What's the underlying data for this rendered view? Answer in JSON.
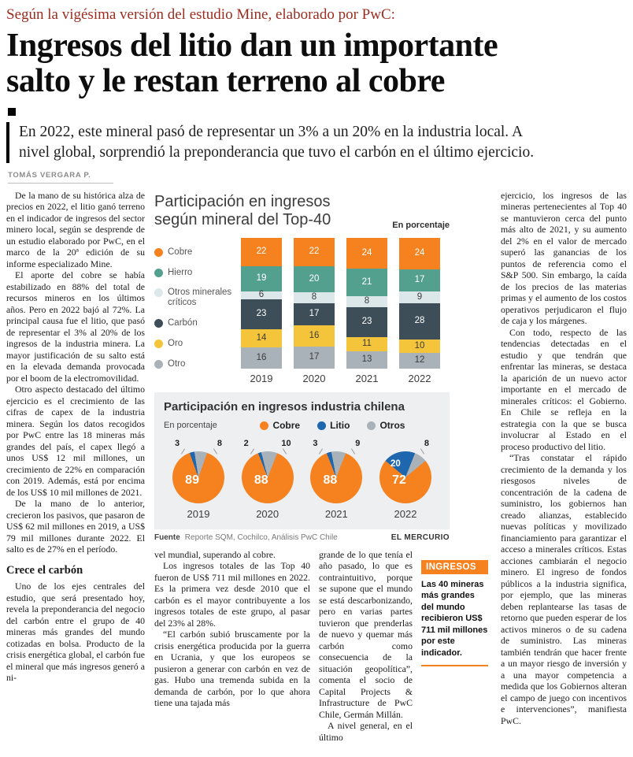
{
  "header": {
    "kicker": "Según la vigésima versión del estudio Mine, elaborado por PwC:",
    "headline_lines": [
      "Ingresos del litio dan un importante",
      "salto y le restan terreno al cobre"
    ],
    "subhead_lines": [
      "En 2022, este mineral pasó de representar un 3% a un 20% en la industria local. A",
      "nivel global, sorprendió la preponderancia que tuvo el carbón en el último ejercicio."
    ],
    "byline": "TOMÁS VERGARA P."
  },
  "columns": {
    "left": {
      "paragraphs": [
        "De la mano de su histórica alza de precios en 2022, el litio ganó terreno en el indicador de ingresos del sector minero local, según se desprende de un estudio elaborado por PwC, en el marco de la 20ª edición de su informe especializado Mine.",
        "El aporte del cobre se había estabilizado en 88% del total de recursos mineros en los últimos años. Pero en 2022 bajó al 72%. La principal causa fue el litio, que pasó de representar el 3% al 20% de los ingresos de la industria minera. La mayor justificación de su salto está en la elevada demanda provocada por el boom de la electromovilidad.",
        "Otro aspecto destacado del último ejercicio es el crecimiento de las cifras de capex de la industria minera. Según los datos recogidos por PwC entre las 18 mineras más grandes del país, el capex llegó a unos US$ 12 mil millones, un crecimiento de 22% en comparación con 2019. Además, está por encima de los US$ 10 mil millones de 2021.",
        "De la mano de lo anterior, crecieron los pasivos, que pasaron de US$ 62 mil millones en 2019, a US$ 79 mil millones durante 2022. El salto es de 27% en el período."
      ],
      "subhead": "Crece el carbón",
      "paragraphs2": [
        "Uno de los ejes centrales del estudio, que será presentado hoy, revela la preponderancia del negocio del carbón entre el grupo de 40 mineras más grandes del mundo cotizadas en bolsa. Producto de la crisis energética global, el carbón fue el mineral que más ingresos generó a ni-"
      ]
    },
    "mid_a": {
      "paragraphs": [
        "vel mundial, superando al cobre.",
        "Los ingresos totales de las Top 40 fueron de US$ 711 mil millones en 2022. Es la primera vez desde 2010 que el carbón es el mayor contribuyente a los ingresos totales de este grupo, al pasar del 23% al 28%.",
        "“El carbón subió bruscamente por la crisis energética producida por la guerra en Ucrania, y que los europeos se pusieron a generar con carbón en vez de gas. Hubo una tremenda subida en la demanda de carbón, por lo que ahora tiene una tajada más"
      ]
    },
    "mid_b": {
      "paragraphs": [
        "grande de lo que tenía el año pasado, lo que es contraintuitivo, porque se supone que el mundo se está descarbonizando, pero en varias partes tuvieron que prenderlas de nuevo y quemar más carbón como consecuencia de la situación geopolítica”, comenta el socio de Capital Projects & Infrastructure de PwC Chile, Germán Millán.",
        "A nivel general, en el último"
      ]
    },
    "right": {
      "paragraphs": [
        "ejercicio, los ingresos de las mineras pertenecientes al Top 40 se mantuvieron cerca del punto más alto de 2021, y su aumento del 2% en el valor de mercado superó las ganancias de los puntos de referencia como el S&P 500. Sin embargo, la caída de los precios de las materias primas y el aumento de los costos operativos perjudicaron el flujo de caja y los márgenes.",
        "Con todo, respecto de las tendencias detectadas en el estudio y que tendrán que enfrentar las mineras, se destaca la aparición de un nuevo actor importante en el mercado de minerales críticos: el Gobierno. En Chile se refleja en la estrategia con la que se busca involucrar al Estado en el proceso productivo del litio.",
        "“Tras constatar el rápido crecimiento de la demanda y los riesgosos niveles de concentración de la cadena de suministro, los gobiernos han creado alianzas, establecido nuevas políticas y movilizado financiamiento para garantizar el acceso a minerales críticos. Estas acciones cambiarán el negocio minero. El ingreso de fondos públicos a la industria significa, por ejemplo, que las mineras deben replantearse las tasas de retorno que pueden esperar de los activos mineros o de su cadena de suministro. Las mineras también tendrán que hacer frente a un mayor riesgo de inversión y a una mayor competencia a medida que los Gobiernos alteran el campo de juego con incentivos e intervenciones”, manifiesta PwC."
      ]
    }
  },
  "infobox": {
    "label": "INGRESOS",
    "text": "Las 40 mineras más grandes del mundo recibieron US$ 711 mil millones por este indicador."
  },
  "source": {
    "label": "Fuente",
    "text": "Reporte SQM, Cochilco, Análisis PwC Chile",
    "credit": "EL MERCURIO"
  },
  "chart_data": [
    {
      "type": "bar",
      "stacked": true,
      "title": "Participación en ingresos según mineral del Top-40",
      "unit_label": "En porcentaje",
      "categories": [
        "2019",
        "2020",
        "2021",
        "2022"
      ],
      "ylim": [
        0,
        100
      ],
      "series": [
        {
          "name": "Cobre",
          "color": "#f5821f",
          "label_color": "#ffffff",
          "values": [
            22,
            22,
            24,
            24
          ]
        },
        {
          "name": "Hierro",
          "color": "#54a08e",
          "label_color": "#ffffff",
          "values": [
            19,
            20,
            21,
            17
          ]
        },
        {
          "name": "Otros minerales críticos",
          "color": "#dce7ea",
          "label_color": "#3c3c3c",
          "values": [
            6,
            8,
            8,
            9
          ]
        },
        {
          "name": "Carbón",
          "color": "#3d4e58",
          "label_color": "#ffffff",
          "values": [
            23,
            17,
            23,
            28
          ]
        },
        {
          "name": "Oro",
          "color": "#f4c53a",
          "label_color": "#3c3c3c",
          "values": [
            14,
            16,
            11,
            10
          ]
        },
        {
          "name": "Otro",
          "color": "#a8b2b8",
          "label_color": "#3c3c3c",
          "values": [
            16,
            17,
            13,
            12
          ]
        }
      ]
    },
    {
      "type": "pie",
      "title": "Participación en ingresos industria chilena",
      "unit_label": "En porcentaje",
      "legend": [
        {
          "name": "Cobre",
          "color": "#f5821f"
        },
        {
          "name": "Litio",
          "color": "#1e66ae"
        },
        {
          "name": "Otros",
          "color": "#a8b2b8"
        }
      ],
      "pies": [
        {
          "label": "2019",
          "cobre": 89,
          "litio": 3,
          "otros": 8
        },
        {
          "label": "2020",
          "cobre": 88,
          "litio": 2,
          "otros": 10
        },
        {
          "label": "2021",
          "cobre": 88,
          "litio": 3,
          "otros": 9
        },
        {
          "label": "2022",
          "cobre": 72,
          "litio": 20,
          "otros": 8
        }
      ]
    }
  ]
}
